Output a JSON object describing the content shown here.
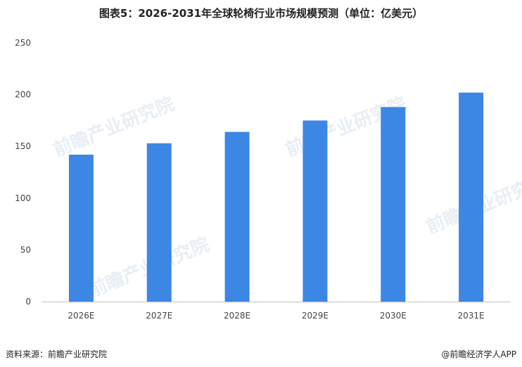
{
  "chart_data": {
    "type": "bar",
    "title": "图表5：2026-2031年全球轮椅行业市场规模预测（单位：亿美元）",
    "categories": [
      "2026E",
      "2027E",
      "2028E",
      "2029E",
      "2030E",
      "2031E"
    ],
    "values": [
      142,
      153,
      164,
      175,
      188,
      202
    ],
    "ylim": [
      0,
      250
    ],
    "yticks": [
      0,
      50,
      100,
      150,
      200,
      250
    ],
    "xlabel": "",
    "ylabel": "",
    "grid": false,
    "bar_color": "#3d87e4"
  },
  "footer": {
    "source": "资料来源：前瞻产业研究院",
    "brand": "@前瞻经济学人APP"
  },
  "watermark": "前瞻产业研究院"
}
